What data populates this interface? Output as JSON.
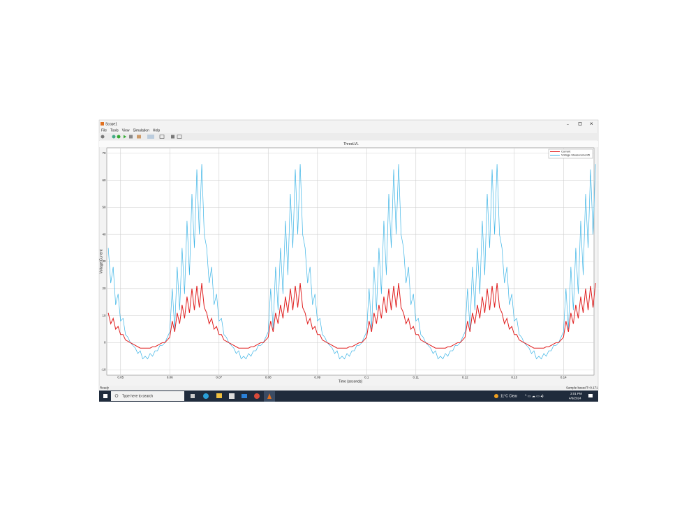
{
  "window": {
    "title": "Scope1",
    "menu": [
      "File",
      "Tools",
      "View",
      "Simulation",
      "Help"
    ],
    "status": "Ready",
    "status_right": [
      "Sample based",
      "T=0.171"
    ]
  },
  "chart_data": {
    "type": "line",
    "title": "ThreeLVL",
    "xlabel": "Time (seconds)",
    "ylabel": "Voltage/Current",
    "xlim": [
      0.0472,
      0.1462
    ],
    "ylim": [
      -12,
      72
    ],
    "xticks": [
      0.05,
      0.06,
      0.07,
      0.08,
      0.09,
      0.1,
      0.11,
      0.12,
      0.13,
      0.14
    ],
    "yticks": [
      -10,
      0,
      10,
      20,
      30,
      40,
      50,
      60,
      70
    ],
    "grid": true,
    "legend": "upper right",
    "x": [
      0.0475,
      0.048,
      0.0485,
      0.049,
      0.0495,
      0.05,
      0.0505,
      0.051,
      0.0515,
      0.052,
      0.0525,
      0.053,
      0.0535,
      0.054,
      0.0545,
      0.055,
      0.0555,
      0.056,
      0.0565,
      0.057,
      0.0575,
      0.058,
      0.0585,
      0.059,
      0.0595,
      0.06,
      0.0605,
      0.061,
      0.0615,
      0.062,
      0.0625,
      0.063,
      0.0635,
      0.064,
      0.0645,
      0.065,
      0.0655,
      0.066,
      0.0665,
      0.067,
      0.0675,
      0.068,
      0.0685,
      0.069,
      0.0695,
      0.07,
      0.0705,
      0.071,
      0.0715,
      0.072,
      0.0725,
      0.073,
      0.0735,
      0.074,
      0.0745,
      0.075,
      0.0755,
      0.076,
      0.0765,
      0.077,
      0.0775,
      0.078,
      0.0785,
      0.079,
      0.0795,
      0.08,
      0.0805,
      0.081,
      0.0815,
      0.082,
      0.0825,
      0.083,
      0.0835,
      0.084,
      0.0845,
      0.085,
      0.0855,
      0.086,
      0.0865,
      0.087,
      0.0875,
      0.088,
      0.0885,
      0.089,
      0.0895,
      0.09,
      0.0905,
      0.091,
      0.0915,
      0.092,
      0.0925,
      0.093,
      0.0935,
      0.094,
      0.0945,
      0.095,
      0.0955,
      0.096,
      0.0965,
      0.097,
      0.0975,
      0.098,
      0.0985,
      0.099,
      0.0995,
      0.1,
      0.1005,
      0.101,
      0.1015,
      0.102,
      0.1025,
      0.103,
      0.1035,
      0.104,
      0.1045,
      0.105,
      0.1055,
      0.106,
      0.1065,
      0.107,
      0.1075,
      0.108,
      0.1085,
      0.109,
      0.1095,
      0.11,
      0.1105,
      0.111,
      0.1115,
      0.112,
      0.1125,
      0.113,
      0.1135,
      0.114,
      0.1145,
      0.115,
      0.1155,
      0.116,
      0.1165,
      0.117,
      0.1175,
      0.118,
      0.1185,
      0.119,
      0.1195,
      0.12,
      0.1205,
      0.121,
      0.1215,
      0.122,
      0.1225,
      0.123,
      0.1235,
      0.124,
      0.1245,
      0.125,
      0.1255,
      0.126,
      0.1265,
      0.127,
      0.1275,
      0.128,
      0.1285,
      0.129,
      0.1295,
      0.13,
      0.1305,
      0.131,
      0.1315,
      0.132,
      0.1325,
      0.133,
      0.1335,
      0.134,
      0.1345,
      0.135,
      0.1355,
      0.136,
      0.1365,
      0.137,
      0.1375,
      0.138,
      0.1385,
      0.139,
      0.1395,
      0.14,
      0.1405,
      0.141,
      0.1415,
      0.142,
      0.1425,
      0.143,
      0.1435,
      0.144,
      0.1445,
      0.145,
      0.1455,
      0.146,
      0.1465
    ],
    "series": [
      {
        "name": "Current",
        "color": "#e02020",
        "values": [
          11,
          7,
          9,
          5,
          6,
          3,
          3,
          1,
          0.5,
          0,
          -0.5,
          -1,
          -1.5,
          -2,
          -2,
          -2,
          -2,
          -2,
          -1.5,
          -1.5,
          -1,
          -0.5,
          0,
          0,
          1,
          2,
          8,
          4,
          11,
          7,
          14,
          9,
          17,
          11,
          20,
          12,
          21,
          13,
          22,
          13,
          11,
          7,
          9,
          5,
          6,
          3,
          3,
          1,
          0.5,
          0,
          -0.5,
          -1,
          -1.5,
          -2,
          -2,
          -2,
          -2,
          -2,
          -1.5,
          -1.5,
          -1,
          -0.5,
          0,
          0,
          1,
          2,
          8,
          4,
          11,
          7,
          14,
          9,
          17,
          11,
          20,
          12,
          21,
          13,
          22,
          13,
          11,
          7,
          9,
          5,
          6,
          3,
          3,
          1,
          0.5,
          0,
          -0.5,
          -1,
          -1.5,
          -2,
          -2,
          -2,
          -2,
          -2,
          -1.5,
          -1.5,
          -1,
          -0.5,
          0,
          0,
          1,
          2,
          8,
          4,
          11,
          7,
          14,
          9,
          17,
          11,
          20,
          12,
          21,
          13,
          22,
          13,
          11,
          7,
          9,
          5,
          6,
          3,
          3,
          1,
          0.5,
          0,
          -0.5,
          -1,
          -1.5,
          -2,
          -2,
          -2,
          -2,
          -2,
          -1.5,
          -1.5,
          -1,
          -0.5,
          0,
          0,
          1,
          2,
          8,
          4,
          11,
          7,
          14,
          9,
          17,
          11,
          20,
          12,
          21,
          13,
          22,
          13,
          11,
          7,
          9,
          5,
          6,
          3,
          3,
          1,
          0.5,
          0,
          -0.5,
          -1,
          -1.5,
          -2,
          -2,
          -2,
          -2,
          -2,
          -1.5,
          -1.5,
          -1,
          -0.5,
          0,
          0,
          1,
          2,
          8,
          4,
          11,
          7,
          14,
          9,
          17,
          11,
          20,
          12,
          21,
          13,
          22
        ]
      },
      {
        "name": "Voltage Measurement5",
        "color": "#3cb4e6",
        "values": [
          35,
          22,
          28,
          14,
          18,
          8,
          9,
          3,
          2,
          0,
          -1,
          -2,
          -4,
          -3,
          -6,
          -5,
          -6,
          -4,
          -5,
          -3,
          -3,
          -1,
          -1,
          0,
          2,
          4,
          20,
          5,
          28,
          12,
          35,
          18,
          45,
          25,
          55,
          35,
          64,
          40,
          66,
          40,
          35,
          22,
          28,
          14,
          18,
          8,
          9,
          3,
          2,
          0,
          -1,
          -2,
          -4,
          -3,
          -6,
          -5,
          -6,
          -4,
          -5,
          -3,
          -3,
          -1,
          -1,
          0,
          2,
          4,
          20,
          5,
          28,
          12,
          35,
          18,
          45,
          25,
          55,
          35,
          64,
          40,
          66,
          40,
          35,
          22,
          28,
          14,
          18,
          8,
          9,
          3,
          2,
          0,
          -1,
          -2,
          -4,
          -3,
          -6,
          -5,
          -6,
          -4,
          -5,
          -3,
          -3,
          -1,
          -1,
          0,
          2,
          4,
          20,
          5,
          28,
          12,
          35,
          18,
          45,
          25,
          55,
          35,
          64,
          40,
          66,
          40,
          35,
          22,
          28,
          14,
          18,
          8,
          9,
          3,
          2,
          0,
          -1,
          -2,
          -4,
          -3,
          -6,
          -5,
          -6,
          -4,
          -5,
          -3,
          -3,
          -1,
          -1,
          0,
          2,
          4,
          20,
          5,
          28,
          12,
          35,
          18,
          45,
          25,
          55,
          35,
          64,
          40,
          66,
          40,
          35,
          22,
          28,
          14,
          18,
          8,
          9,
          3,
          2,
          0,
          -1,
          -2,
          -4,
          -3,
          -6,
          -5,
          -6,
          -4,
          -5,
          -3,
          -3,
          -1,
          -1,
          0,
          2,
          4,
          20,
          5,
          28,
          12,
          35,
          18,
          45,
          25,
          55,
          35,
          64,
          40,
          66
        ]
      }
    ]
  },
  "taskbar": {
    "search": "Type here to search",
    "weather": "11°C  Clear",
    "time": "3:01 PM",
    "date": "4/6/2024"
  }
}
